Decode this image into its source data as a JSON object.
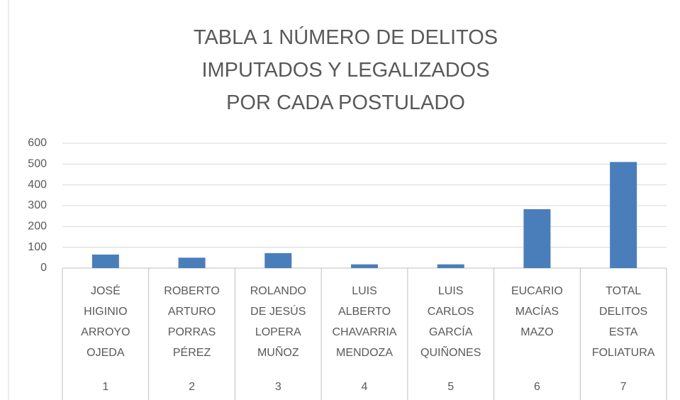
{
  "chart_data": {
    "type": "bar",
    "title": "TABLA 1 NÚMERO DE DELITOS\nIMPUTADOS Y LEGALIZADOS\nPOR CADA POSTULADO",
    "categories": [
      "JOSÉ\nHIGINIO\nARROYO\nOJEDA",
      "ROBERTO\nARTURO\nPORRAS\nPÉREZ",
      "ROLANDO\nDE JESÚS\nLOPERA\nMUÑOZ",
      "LUIS\nALBERTO\nCHAVARRIA\nMENDOZA",
      "LUIS\nCARLOS\nGARCÍA\nQUIÑONES",
      "EUCARIO\nMACÍAS\nMAZO",
      "TOTAL\nDELITOS\nESTA\nFOLIATURA"
    ],
    "category_groups": [
      1,
      2,
      3,
      4,
      5,
      6,
      7
    ],
    "values": [
      65,
      50,
      72,
      18,
      18,
      283,
      510
    ],
    "color": "#4a7ebb",
    "ylim": [
      0,
      600
    ],
    "yticks": [
      0,
      100,
      200,
      300,
      400,
      500,
      600
    ],
    "grid": true
  }
}
